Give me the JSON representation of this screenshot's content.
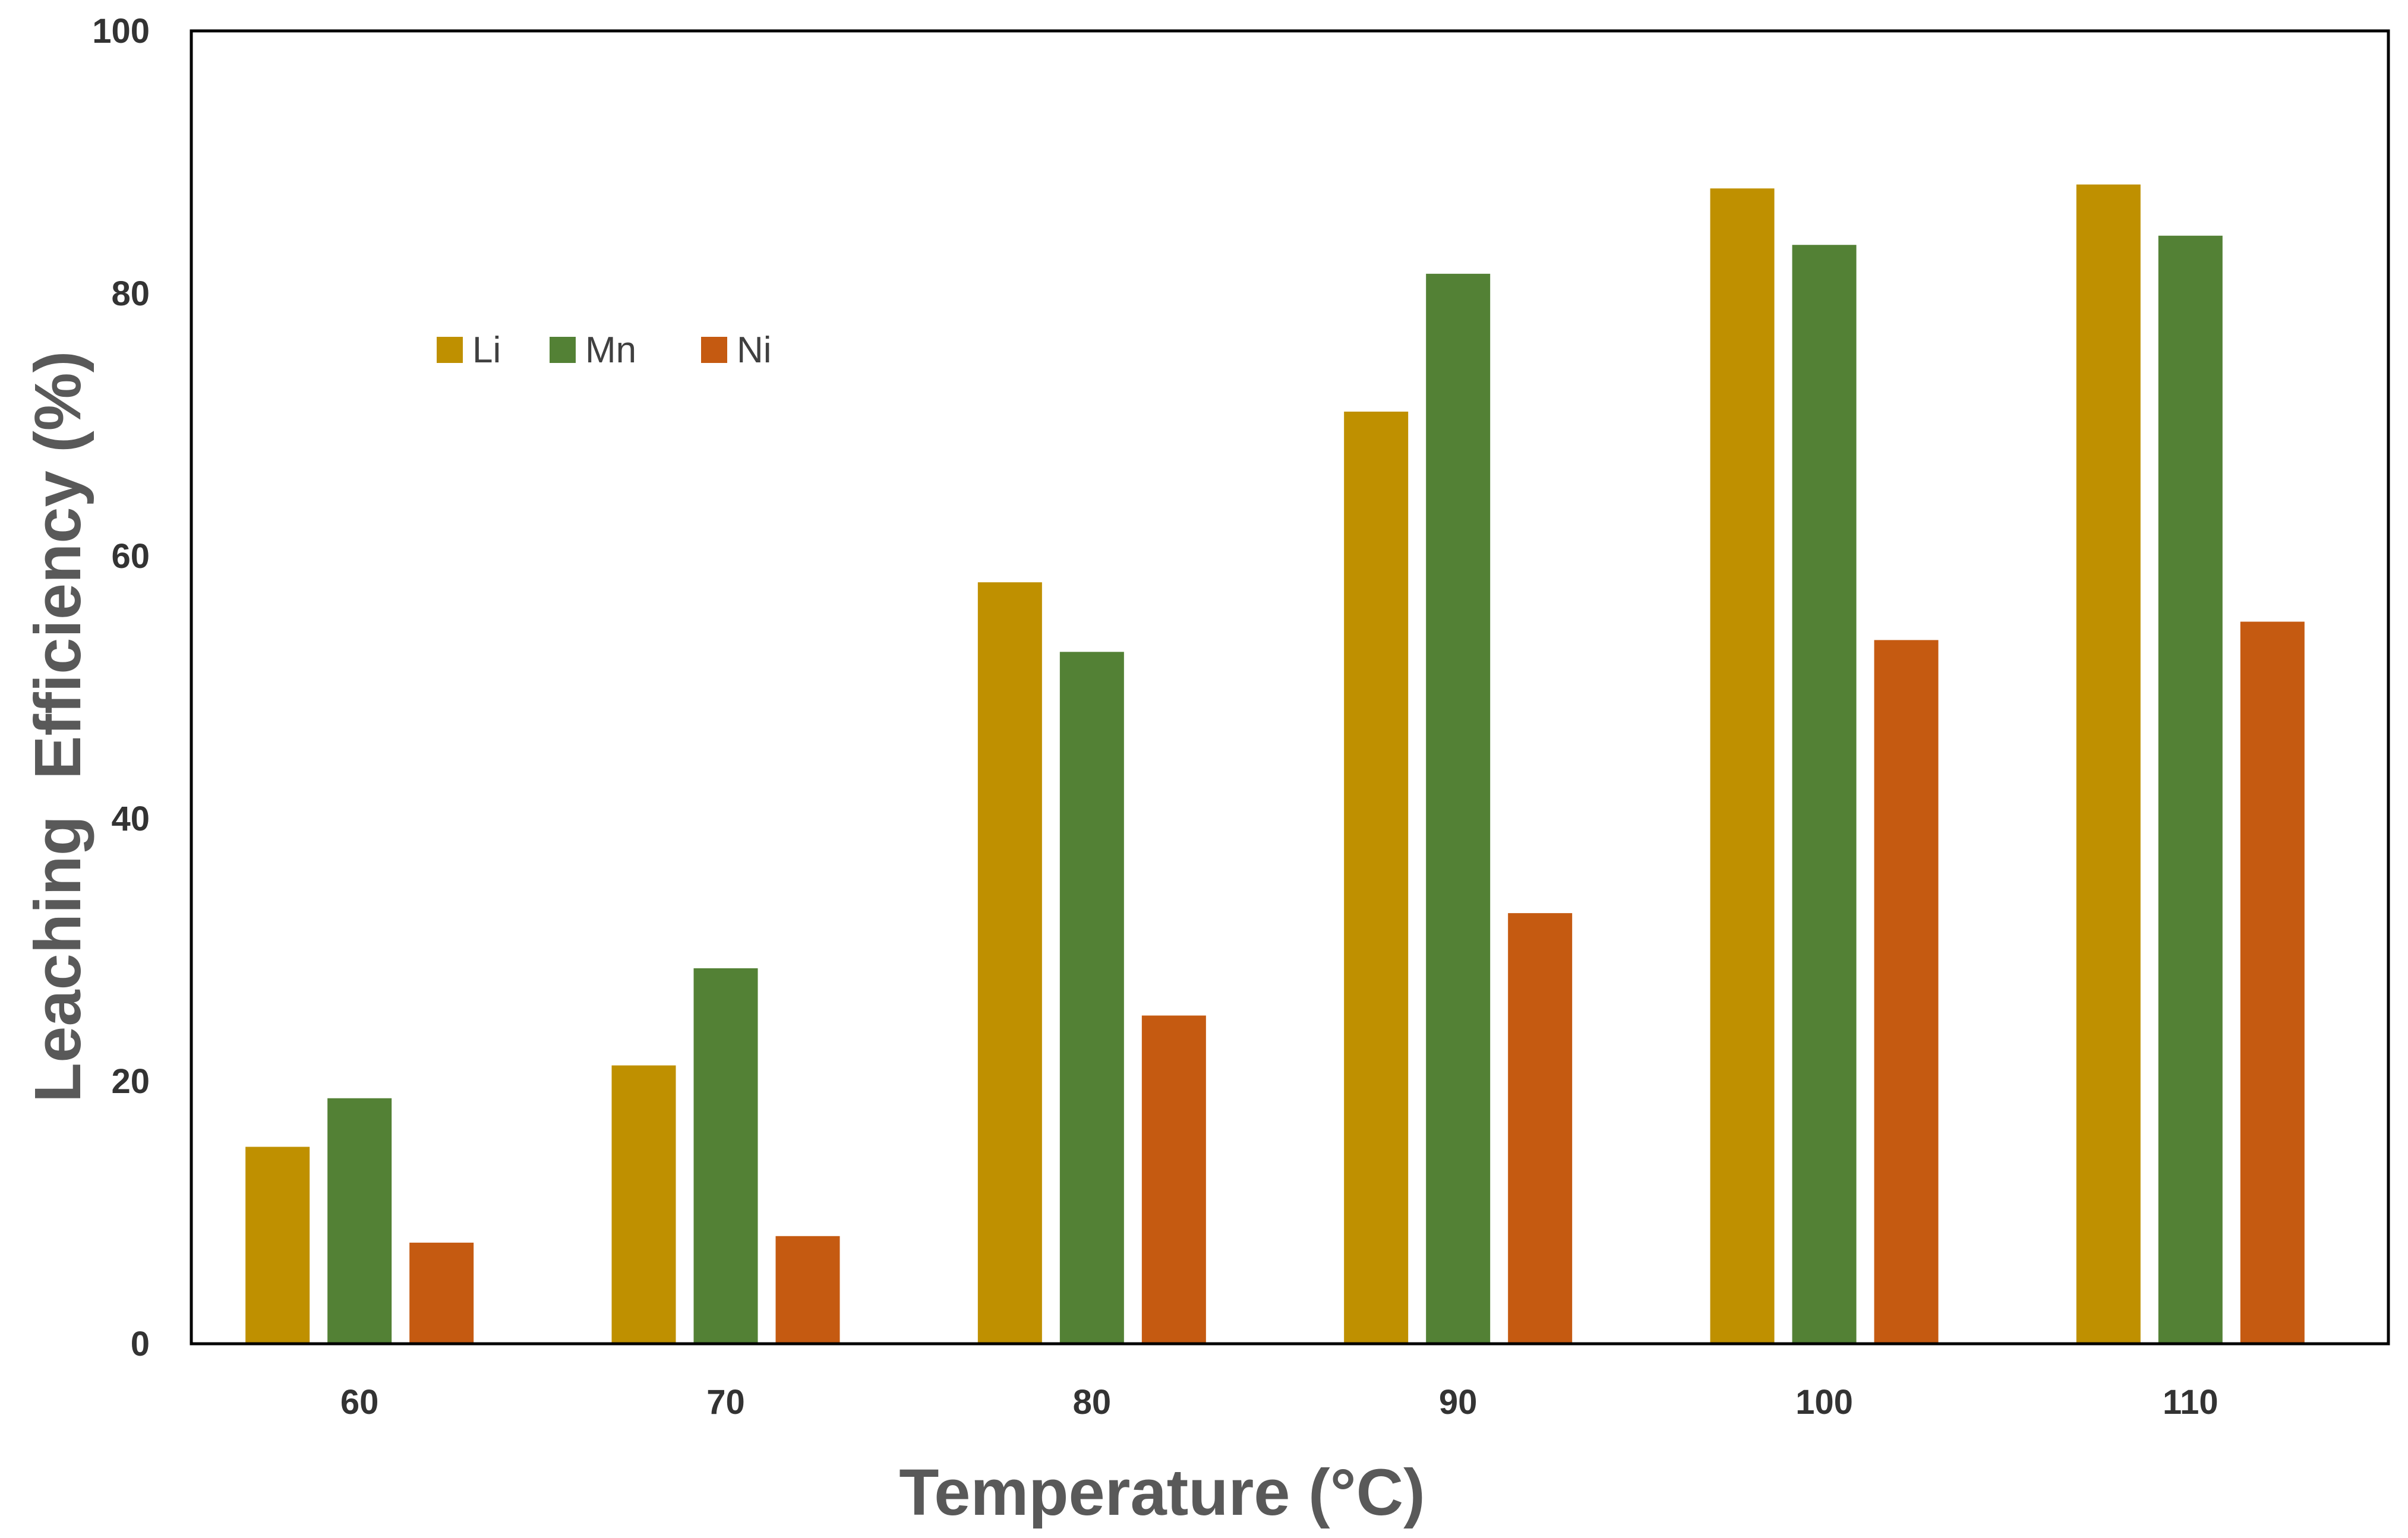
{
  "chart_data": {
    "type": "bar",
    "title": "",
    "xlabel": "Temperature (°C)",
    "ylabel": "Leaching  Efficiency (%)",
    "categories": [
      "60",
      "70",
      "80",
      "90",
      "100",
      "110"
    ],
    "series": [
      {
        "name": "Li",
        "color": "#BF9000",
        "values": [
          15.0,
          21.2,
          58.0,
          71.0,
          88.0,
          88.3
        ]
      },
      {
        "name": "Mn",
        "color": "#538135",
        "values": [
          18.7,
          28.6,
          52.7,
          81.5,
          83.7,
          84.4
        ]
      },
      {
        "name": "Ni",
        "color": "#C55A11",
        "values": [
          7.7,
          8.2,
          25.0,
          32.8,
          53.6,
          55.0
        ]
      }
    ],
    "ylim": [
      0,
      100
    ],
    "yticks": [
      "0",
      "20",
      "40",
      "60",
      "80",
      "100"
    ],
    "grid": false,
    "legend_position": "top-left"
  }
}
